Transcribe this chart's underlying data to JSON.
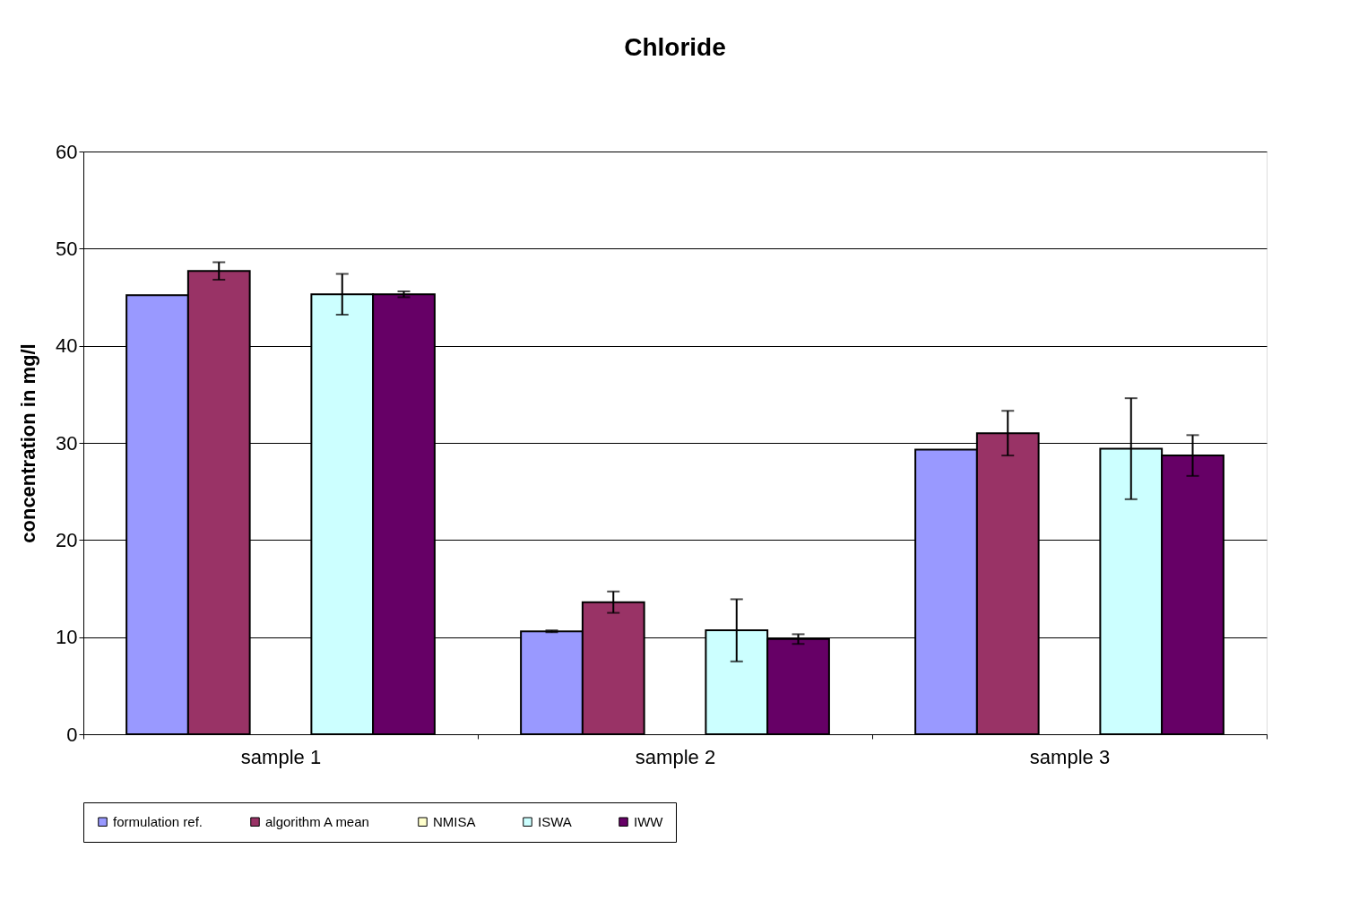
{
  "chart_data": {
    "type": "bar",
    "title": "Chloride",
    "ylabel": "concentration in mg/l",
    "categories": [
      "sample 1",
      "sample 2",
      "sample 3"
    ],
    "series": [
      {
        "name": "formulation ref.",
        "color": "#9999ff",
        "values": [
          45.2,
          10.6,
          29.3
        ],
        "errors": [
          null,
          0.1,
          null
        ]
      },
      {
        "name": "algorithm A mean",
        "color": "#993366",
        "values": [
          47.7,
          13.6,
          31.0
        ],
        "errors": [
          0.9,
          1.1,
          2.3
        ]
      },
      {
        "name": "NMISA",
        "color": "#ffffcc",
        "values": [
          null,
          null,
          null
        ]
      },
      {
        "name": "ISWA",
        "color": "#ccffff",
        "values": [
          45.3,
          10.7,
          29.4
        ],
        "errors": [
          2.1,
          3.2,
          5.2
        ]
      },
      {
        "name": "IWW",
        "color": "#660066",
        "values": [
          45.3,
          9.8,
          28.7
        ],
        "errors": [
          0.3,
          0.5,
          2.1
        ]
      }
    ],
    "ylim": [
      0,
      60
    ],
    "yticks": [
      0,
      10,
      20,
      30,
      40,
      50,
      60
    ],
    "grid": "y",
    "legend": "bottom"
  }
}
